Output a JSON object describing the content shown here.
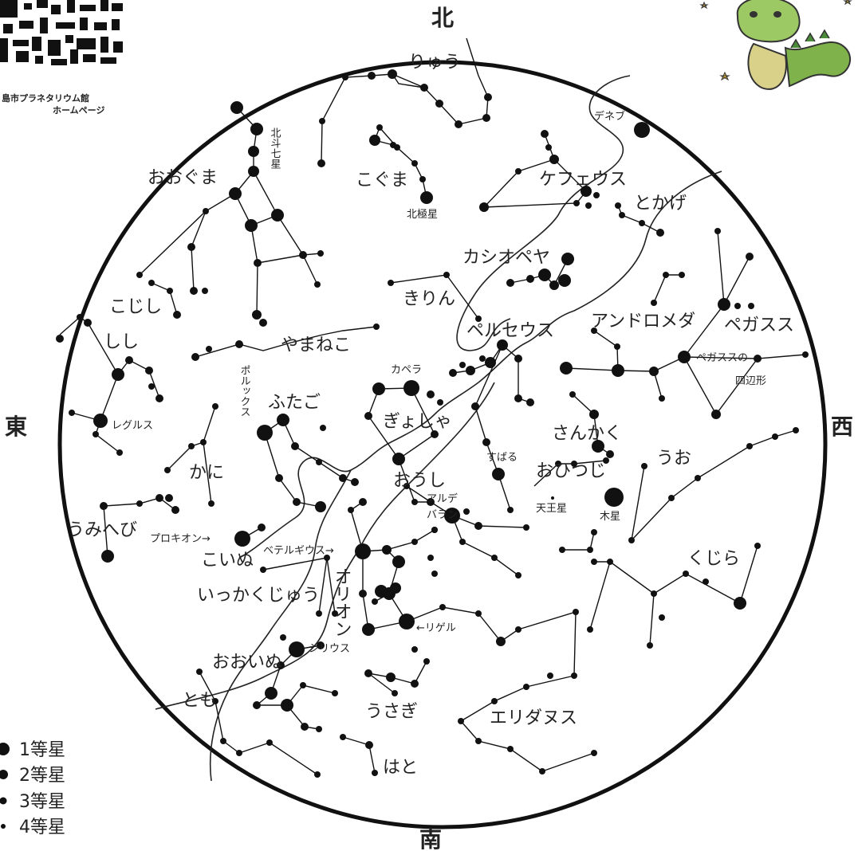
{
  "directions": {
    "north": "北",
    "south": "南",
    "east": "東",
    "west": "西"
  },
  "qr_caption": [
    "島市プラネタリウム館",
    "ホームページ"
  ],
  "legend": [
    {
      "label": "1等星",
      "mag": 1
    },
    {
      "label": "2等星",
      "mag": 2
    },
    {
      "label": "3等星",
      "mag": 3
    },
    {
      "label": "4等星",
      "mag": 4
    }
  ],
  "constellations": {
    "ryuu": "りゅう",
    "kogumaa": "こぐま",
    "ookuma": "おおぐま",
    "hokuto": "北斗七星",
    "hokkyokusei": "北極星",
    "kojishi": "こじし",
    "shishi": "しし",
    "regulus": "レグルス",
    "yamaneko": "やまねこ",
    "kirin": "きりん",
    "cassiopeia": "カシオペヤ",
    "cepheus": "ケフェウス",
    "deneb": "デネブ",
    "tokage": "とかげ",
    "perseus": "ペルセウス",
    "andromeda": "アンドロメダ",
    "pegasus": "ペガスス",
    "pegasus_square1": "ペガススの",
    "pegasus_square2": "四辺形",
    "capella": "カペラ",
    "pollux": "ポルックス",
    "futago": "ふたご",
    "gyosha": "ぎょしゃ",
    "kani": "かに",
    "sankaku": "さんかく",
    "uo": "うお",
    "subaru": "すばる",
    "ohitsuji": "おひつじ",
    "oushi": "おうし",
    "aldebaran1": "アルデ",
    "aldebaran2": "バラン",
    "tennousei": "天王星",
    "mokusei": "木星",
    "umihebi": "うみへび",
    "procyon": "プロキオン→",
    "koinu": "こいぬ",
    "betelgeuse": "ベテルギウス→",
    "orion": "オリオン",
    "ikkakujuu": "いっかくじゅう",
    "kujira": "くじら",
    "rigel": "←リゲル",
    "sirius": "シリウス",
    "ooinu": "おおいぬ",
    "tomo": "とも",
    "usagi": "うさぎ",
    "eridanus": "エリダヌス",
    "hato": "はと"
  }
}
